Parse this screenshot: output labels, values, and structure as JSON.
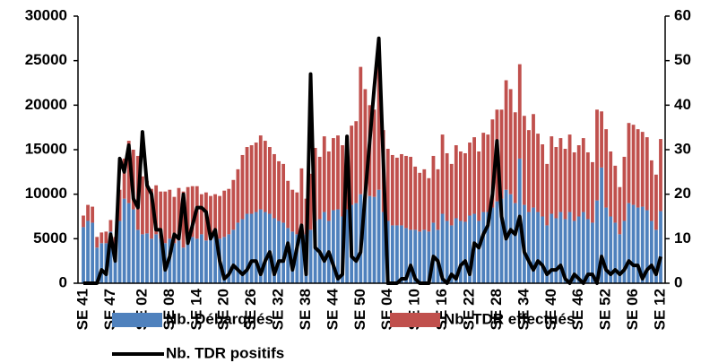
{
  "chart_data": {
    "type": "bar",
    "stacked": true,
    "legend": "bottom",
    "categories": [
      "SE 41",
      null,
      null,
      null,
      null,
      null,
      "SE 47",
      null,
      null,
      null,
      null,
      null,
      null,
      "SE 02",
      null,
      null,
      null,
      null,
      null,
      "SE 08",
      null,
      null,
      null,
      null,
      null,
      "SE 14",
      null,
      null,
      null,
      null,
      null,
      "SE 20",
      null,
      null,
      null,
      null,
      null,
      "SE 26",
      null,
      null,
      null,
      null,
      null,
      "SE 32",
      null,
      null,
      null,
      null,
      null,
      "SE 38",
      null,
      null,
      null,
      null,
      null,
      "SE 44",
      null,
      null,
      null,
      null,
      null,
      "SE 50",
      null,
      null,
      null,
      null,
      null,
      "SE 04",
      null,
      null,
      null,
      null,
      null,
      "SE 10",
      null,
      null,
      null,
      null,
      null,
      "SE 16",
      null,
      null,
      null,
      null,
      null,
      "SE 22",
      null,
      null,
      null,
      null,
      null,
      "SE 28",
      null,
      null,
      null,
      null,
      null,
      "SE 34",
      null,
      null,
      null,
      null,
      null,
      "SE 40",
      null,
      null,
      null,
      null,
      null,
      "SE 46",
      null,
      null,
      null,
      null,
      null,
      "SE 52",
      null,
      null,
      null,
      null,
      null,
      "SE 06",
      null,
      null,
      null,
      null,
      null,
      "SE 12"
    ],
    "series": [
      {
        "name": "Nb. Débarqués",
        "type": "bar",
        "color": "#4f81bd",
        "values": [
          6300,
          7000,
          6800,
          4000,
          4500,
          4500,
          5800,
          3000,
          7000,
          9500,
          9000,
          8300,
          6000,
          5500,
          5600,
          5000,
          5500,
          5000,
          4500,
          5000,
          4500,
          4800,
          4000,
          5000,
          5200,
          5000,
          5500,
          4800,
          5000,
          5300,
          5000,
          5200,
          5500,
          6000,
          6800,
          7200,
          7800,
          7800,
          8000,
          8300,
          8000,
          7800,
          7300,
          7000,
          6800,
          6200,
          5800,
          5500,
          6500,
          5500,
          6000,
          7000,
          7200,
          8000,
          7000,
          8200,
          8300,
          7500,
          8300,
          8800,
          9000,
          10000,
          9500,
          9800,
          9700,
          10500,
          8000,
          7000,
          6500,
          6500,
          6500,
          6200,
          6000,
          6000,
          5800,
          6000,
          5800,
          6800,
          6000,
          7800,
          7000,
          6500,
          7300,
          7000,
          6900,
          7600,
          7800,
          7000,
          8000,
          8000,
          8500,
          9200,
          9500,
          10500,
          10000,
          9000,
          14000,
          8800,
          8000,
          8500,
          8000,
          7500,
          6500,
          7800,
          7300,
          8000,
          7200,
          8000,
          7000,
          7500,
          8000,
          7200,
          6800,
          9300,
          13000,
          8500,
          7500,
          6800,
          5500,
          7000,
          9000,
          8800,
          8500,
          8600,
          8200,
          7000,
          6000,
          8100
        ]
      },
      {
        "name": "Nb. TDR effectués",
        "type": "bar",
        "color": "#c0504d",
        "values": [
          1300,
          1800,
          1800,
          1200,
          1200,
          1300,
          1300,
          2200,
          3500,
          4500,
          7000,
          6700,
          8300,
          6500,
          5900,
          5600,
          5500,
          5300,
          5800,
          5500,
          5200,
          5900,
          6300,
          5800,
          5700,
          5900,
          4500,
          5400,
          4800,
          4700,
          4800,
          5200,
          5100,
          5600,
          6000,
          7200,
          7500,
          7700,
          7800,
          8300,
          8000,
          7500,
          7200,
          6700,
          6600,
          5300,
          4700,
          4700,
          6400,
          4000,
          6300,
          8200,
          7000,
          8500,
          7800,
          8100,
          8300,
          8000,
          7500,
          8900,
          9200,
          14300,
          12300,
          10200,
          9800,
          14200,
          9200,
          8100,
          7900,
          7600,
          8000,
          8100,
          8200,
          7100,
          6600,
          6800,
          6000,
          7500,
          6800,
          8900,
          7600,
          6900,
          8200,
          7800,
          7700,
          8200,
          8600,
          7800,
          8900,
          8700,
          9900,
          10300,
          10000,
          12300,
          11800,
          10200,
          10600,
          10000,
          9200,
          10500,
          8800,
          8100,
          6900,
          8700,
          8000,
          8300,
          7900,
          8700,
          7700,
          8000,
          8300,
          7500,
          6800,
          10200,
          6300,
          8800,
          7300,
          6400,
          5300,
          7200,
          9000,
          9000,
          8800,
          8400,
          8200,
          6800,
          6200,
          8100
        ]
      },
      {
        "name": "Nb. TDR positifs",
        "type": "line",
        "axis": "y2",
        "color": "#000000",
        "values": [
          0,
          0,
          0,
          0,
          3,
          2,
          11,
          5,
          28,
          25,
          31,
          19,
          17,
          34,
          22,
          20,
          12,
          12,
          3,
          6,
          11,
          10,
          20,
          9,
          13,
          17,
          17,
          16,
          10,
          12,
          5,
          1,
          2,
          4,
          3,
          2,
          3,
          5,
          5,
          2,
          5,
          7,
          2,
          5,
          5,
          9,
          3,
          8,
          13,
          2,
          47,
          8,
          7,
          5,
          7,
          4,
          1,
          2,
          33,
          6,
          5,
          7,
          20,
          32,
          44,
          55,
          27,
          0,
          0,
          0,
          1,
          1,
          4,
          1,
          0,
          0,
          0,
          6,
          5,
          1,
          0,
          2,
          1,
          4,
          5,
          2,
          9,
          8,
          11,
          13,
          20,
          32,
          15,
          10,
          12,
          11,
          15,
          7,
          5,
          3,
          5,
          4,
          2,
          3,
          3,
          4,
          1,
          0,
          2,
          1,
          0,
          2,
          2,
          0,
          6,
          3,
          2,
          3,
          2,
          3,
          5,
          4,
          4,
          1,
          3,
          4,
          2,
          6
        ]
      }
    ],
    "ylim": [
      0,
      30000
    ],
    "yticks": [
      0,
      5000,
      10000,
      15000,
      20000,
      25000,
      30000
    ],
    "y2lim": [
      0,
      60
    ],
    "y2ticks": [
      0,
      10,
      20,
      30,
      40,
      50,
      60
    ]
  }
}
